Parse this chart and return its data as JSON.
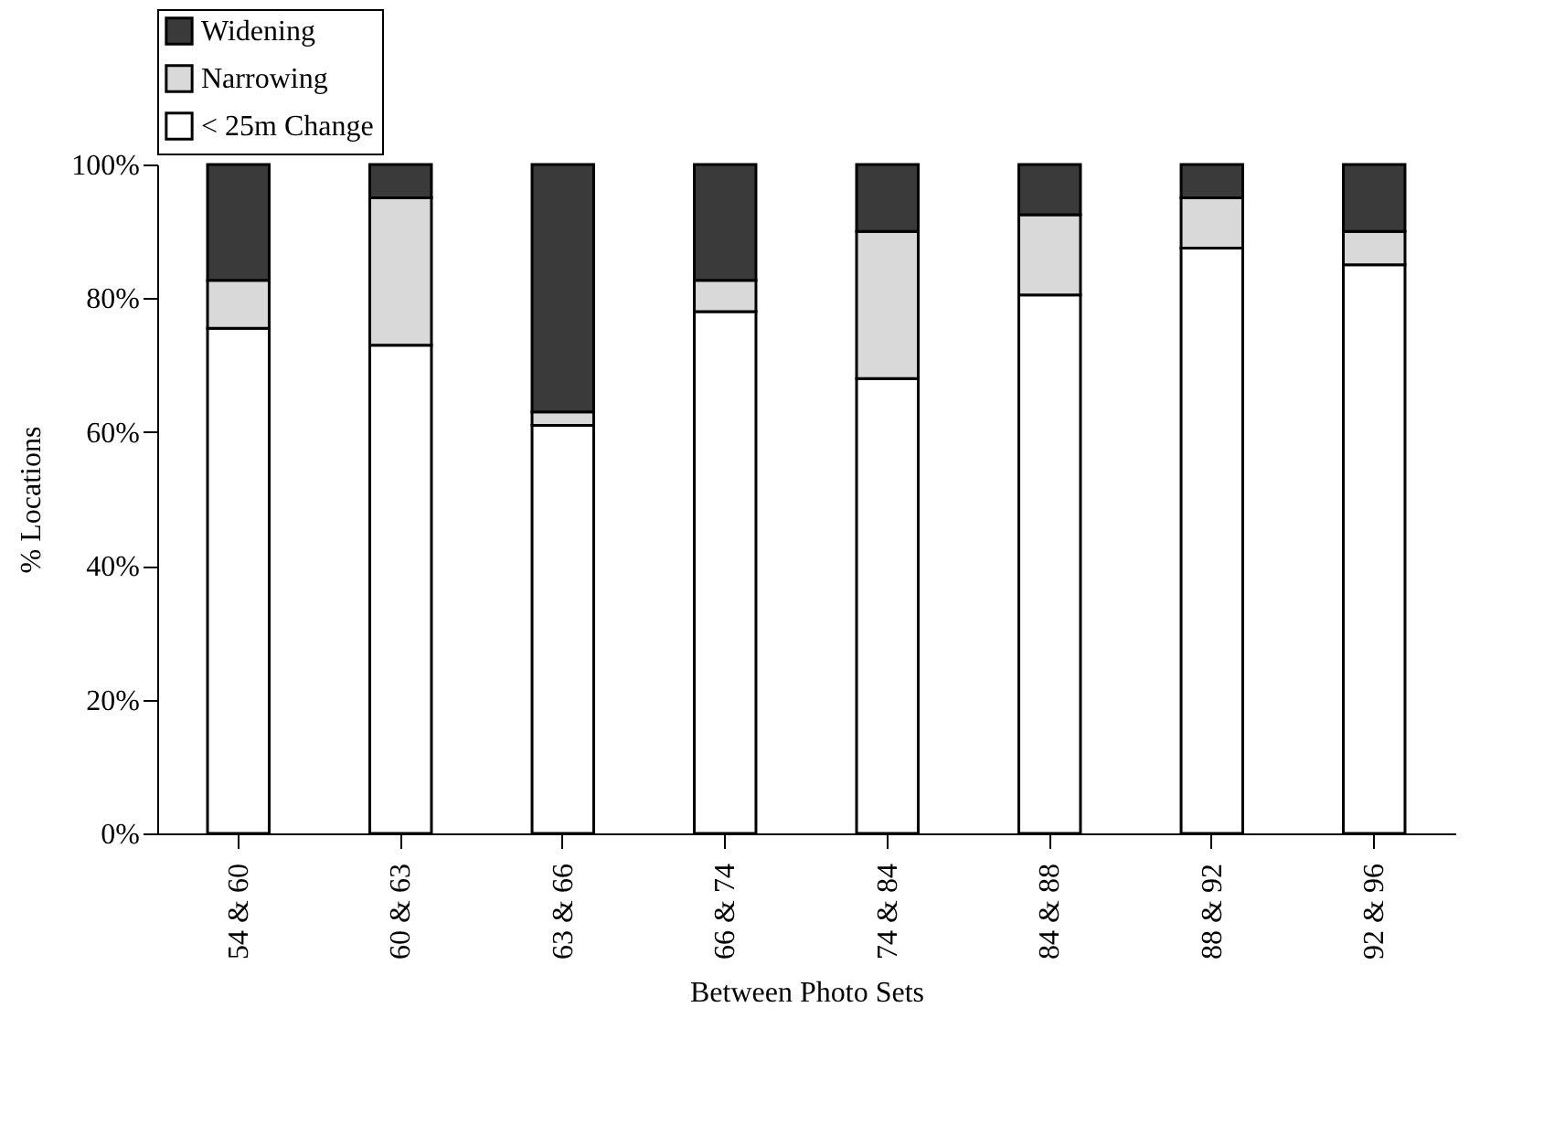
{
  "chart_data": {
    "type": "bar",
    "stacked": true,
    "xlabel": "Between Photo Sets",
    "ylabel": "% Locations",
    "categories": [
      "54 & 60",
      "60 & 63",
      "63 & 66",
      "66 & 74",
      "74 & 84",
      "84 & 88",
      "88 & 92",
      "92 & 96"
    ],
    "series": [
      {
        "name": "< 25m Change",
        "color": "#ffffff",
        "values": [
          75.5,
          73,
          61,
          78,
          68,
          80.5,
          87.5,
          85
        ]
      },
      {
        "name": "Narrowing",
        "color": "#d9d9d9",
        "values": [
          7.2,
          22,
          2,
          4.7,
          22,
          12,
          7.5,
          5
        ]
      },
      {
        "name": "Widening",
        "color": "#3a3a3a",
        "values": [
          17.3,
          5,
          37,
          17.3,
          10,
          7.5,
          5,
          10
        ]
      }
    ],
    "ylim": [
      0,
      100
    ],
    "yticks": [
      {
        "value": 0,
        "label": "0%"
      },
      {
        "value": 20,
        "label": "20%"
      },
      {
        "value": 40,
        "label": "40%"
      },
      {
        "value": 60,
        "label": "60%"
      },
      {
        "value": 80,
        "label": "80%"
      },
      {
        "value": 100,
        "label": "100%"
      }
    ],
    "grid": false,
    "legend": "top"
  }
}
